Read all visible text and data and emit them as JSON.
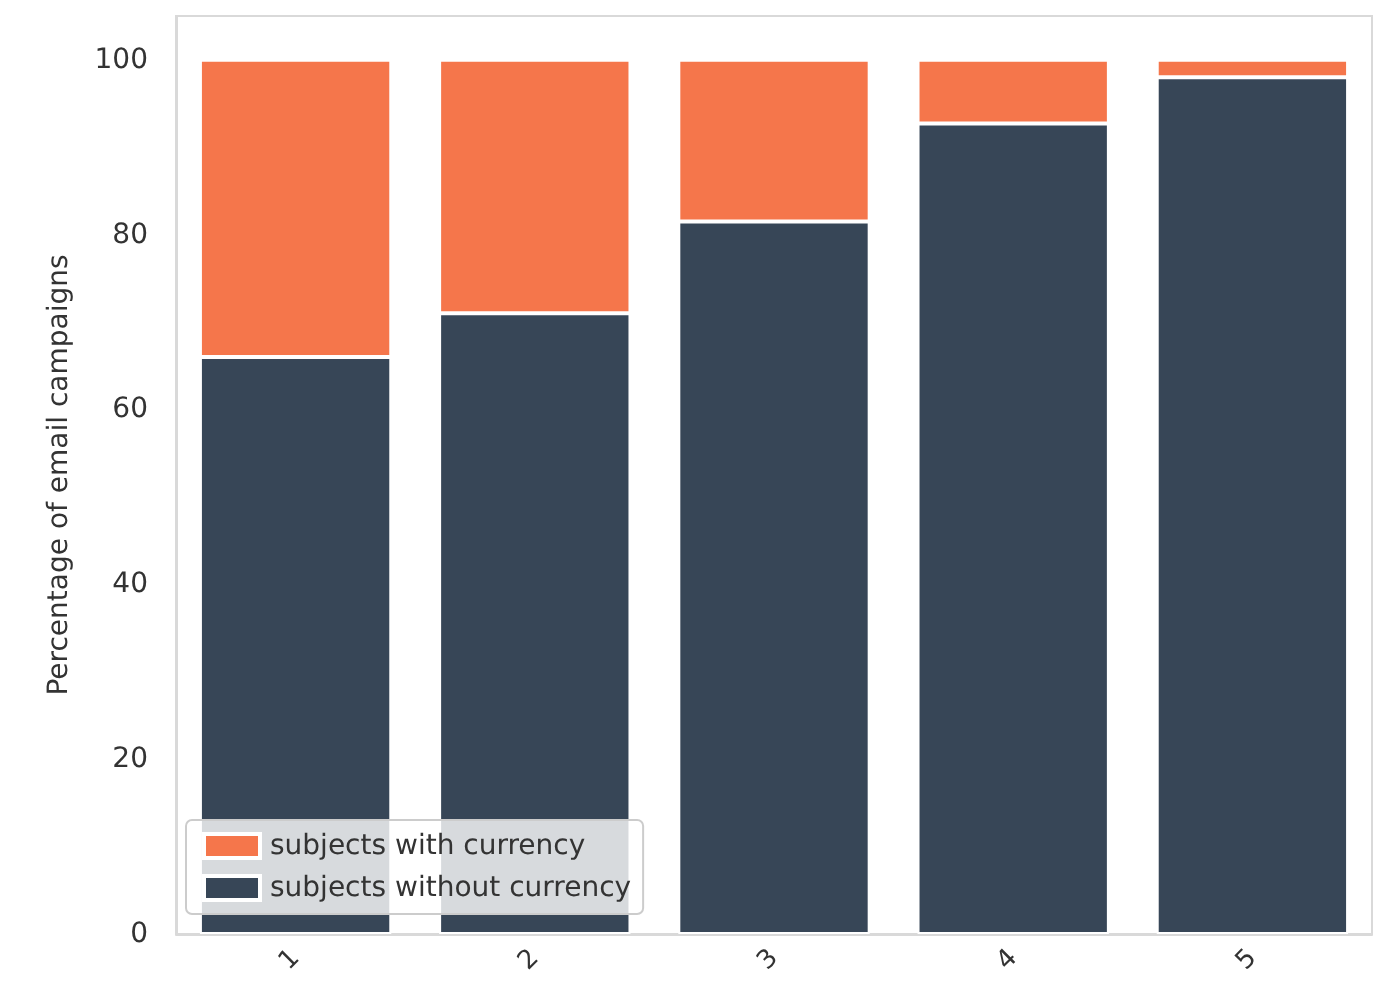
{
  "chart_data": {
    "type": "bar",
    "ylabel": "Percentage of email campaigns",
    "categories": [
      "1",
      "2",
      "3",
      "4",
      "5"
    ],
    "stacked": true,
    "series": [
      {
        "name": "subjects without currency",
        "color": "#374657",
        "values": [
          66,
          71,
          81.5,
          92.7,
          98
        ]
      },
      {
        "name": "subjects with currency",
        "color": "#f5764b",
        "values": [
          34,
          29,
          18.5,
          7.3,
          2
        ]
      }
    ],
    "ylim": [
      0,
      105
    ],
    "yticks": [
      0,
      20,
      40,
      60,
      80,
      100
    ],
    "grid": false,
    "legend": "bottom left"
  }
}
